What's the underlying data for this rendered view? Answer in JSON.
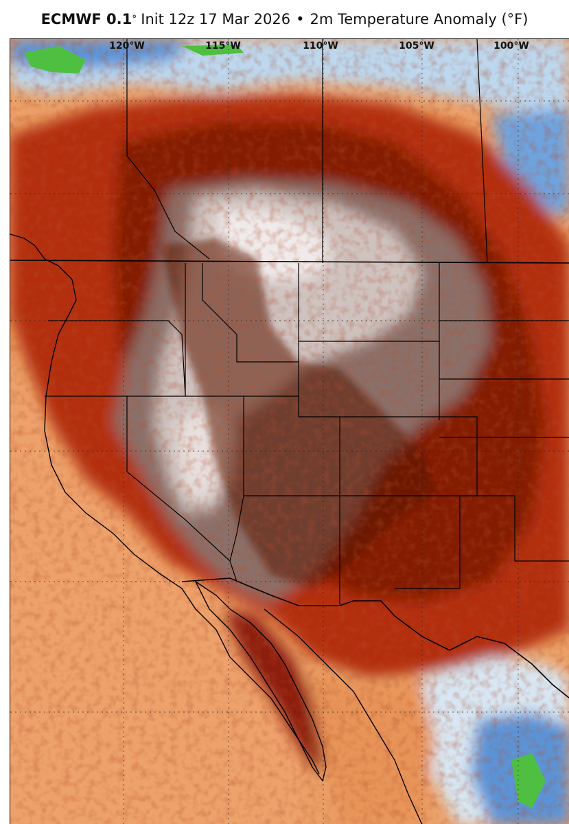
{
  "header": {
    "model": "ECMWF 0.1",
    "degree": "°",
    "init": "Init 12z 17 Mar 2026",
    "bullet": "•",
    "field": "2m Temperature Anomaly (°F)"
  },
  "map": {
    "longitude_labels": [
      "120°W",
      "115°W",
      "110°W",
      "105°W",
      "100°W"
    ],
    "colors": {
      "deep_red": "#7d1906",
      "red": "#b32e0c",
      "orange_red": "#d9541d",
      "orange": "#eb8f52",
      "light_orange": "#f1b785",
      "pale": "#f4d2b0",
      "gray_brown": "#8b6f69",
      "light_gray": "#cfc3c0",
      "white": "#f3f0ef",
      "light_blue": "#bcd7ee",
      "blue": "#5b93d6",
      "green": "#4fbf42"
    }
  }
}
